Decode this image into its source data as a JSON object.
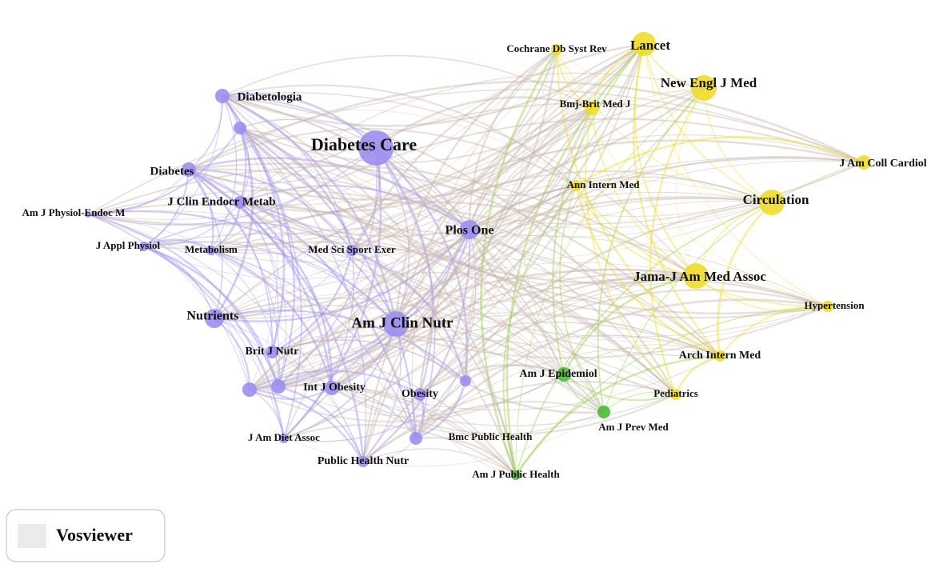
{
  "nodes": [
    {
      "label": "Diabetes Care"
    },
    {
      "label": "Diabetologia"
    },
    {
      "label": "Diabetes"
    },
    {
      "label": "J Clin Endocr Metab"
    },
    {
      "label": "Am J Physiol-Endoc M"
    },
    {
      "label": "J Appl Physiol"
    },
    {
      "label": "Metabolism"
    },
    {
      "label": "Med Sci Sport Exer"
    },
    {
      "label": "Plos One"
    },
    {
      "label": "Nutrients"
    },
    {
      "label": "Am J Clin Nutr"
    },
    {
      "label": "Brit J Nutr"
    },
    {
      "label": "Int J Obesity"
    },
    {
      "label": "Obesity"
    },
    {
      "label": "J Am Diet Assoc"
    },
    {
      "label": "Public Health Nutr"
    },
    {
      "label": "Bmc Public Health"
    },
    {
      "label": "Am J Public Health"
    },
    {
      "label": "Am J Epidemiol"
    },
    {
      "label": "Am J Prev Med"
    },
    {
      "label": "Pediatrics"
    },
    {
      "label": "Arch Intern Med"
    },
    {
      "label": "Hypertension"
    },
    {
      "label": "Jama-J Am Med Assoc"
    },
    {
      "label": "Circulation"
    },
    {
      "label": "J Am Coll Cardiol"
    },
    {
      "label": "Ann Intern Med"
    },
    {
      "label": "Bmj-Brit Med J"
    },
    {
      "label": "New Engl J Med"
    },
    {
      "label": "Lancet"
    },
    {
      "label": "Cochrane Db Syst Rev"
    }
  ],
  "logo": {
    "text": "Vosviewer"
  }
}
